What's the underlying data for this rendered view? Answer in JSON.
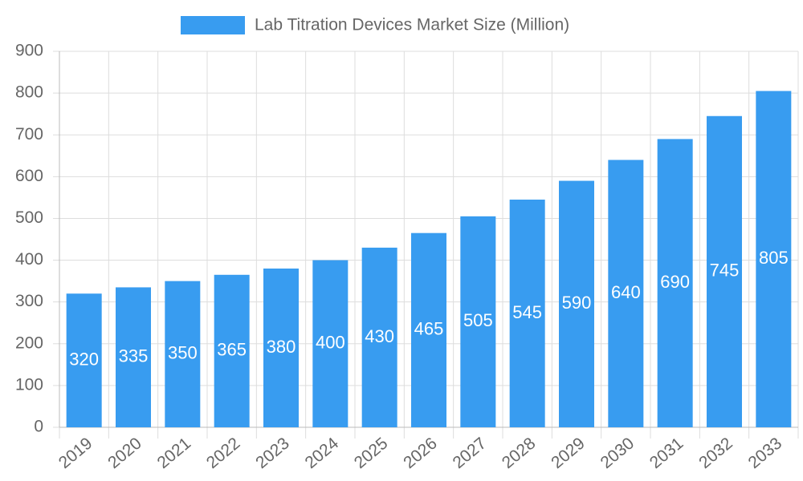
{
  "chart_data": {
    "type": "bar",
    "categories": [
      "2019",
      "2020",
      "2021",
      "2022",
      "2023",
      "2024",
      "2025",
      "2026",
      "2027",
      "2028",
      "2029",
      "2030",
      "2031",
      "2032",
      "2033"
    ],
    "series": [
      {
        "name": "Lab Titration Devices Market Size (Million)",
        "color": "#389cf0",
        "values": [
          320,
          335,
          350,
          365,
          380,
          400,
          430,
          465,
          505,
          545,
          590,
          640,
          690,
          745,
          805
        ]
      }
    ],
    "ylim": [
      0,
      900
    ],
    "yticks": [
      0,
      100,
      200,
      300,
      400,
      500,
      600,
      700,
      800,
      900
    ],
    "grid": true,
    "legend": "top"
  }
}
